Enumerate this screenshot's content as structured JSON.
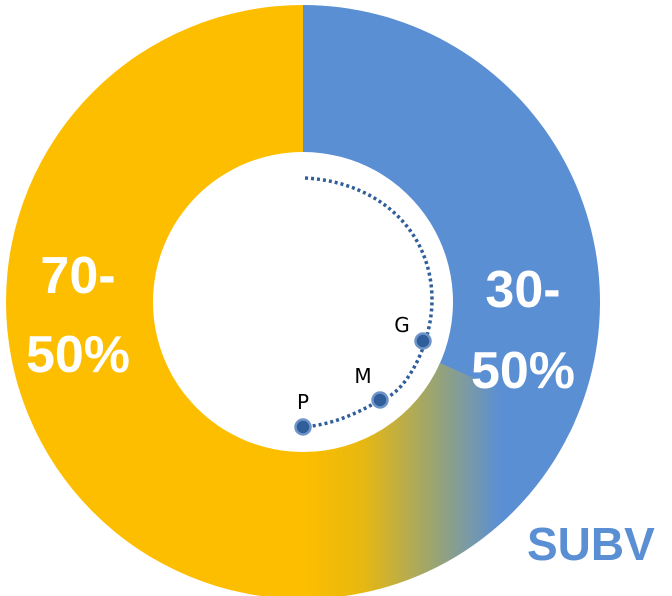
{
  "chart_data": {
    "type": "pie",
    "style": "donut",
    "segments": [
      {
        "lines": [
          "30-",
          "50%"
        ],
        "range": [
          30,
          50
        ],
        "color": "#5B8FD4"
      },
      {
        "lines": [
          "70-",
          "50%"
        ],
        "range": [
          70,
          50
        ],
        "color": "#FDBE00"
      }
    ],
    "markers": [
      "G",
      "M",
      "P"
    ],
    "corner_label": "SUBV",
    "colors": {
      "blue": "#5B8FD4",
      "yellow": "#FDBE00",
      "marker": "#2F5E9A",
      "corner_text": "#5B8FD4"
    }
  }
}
